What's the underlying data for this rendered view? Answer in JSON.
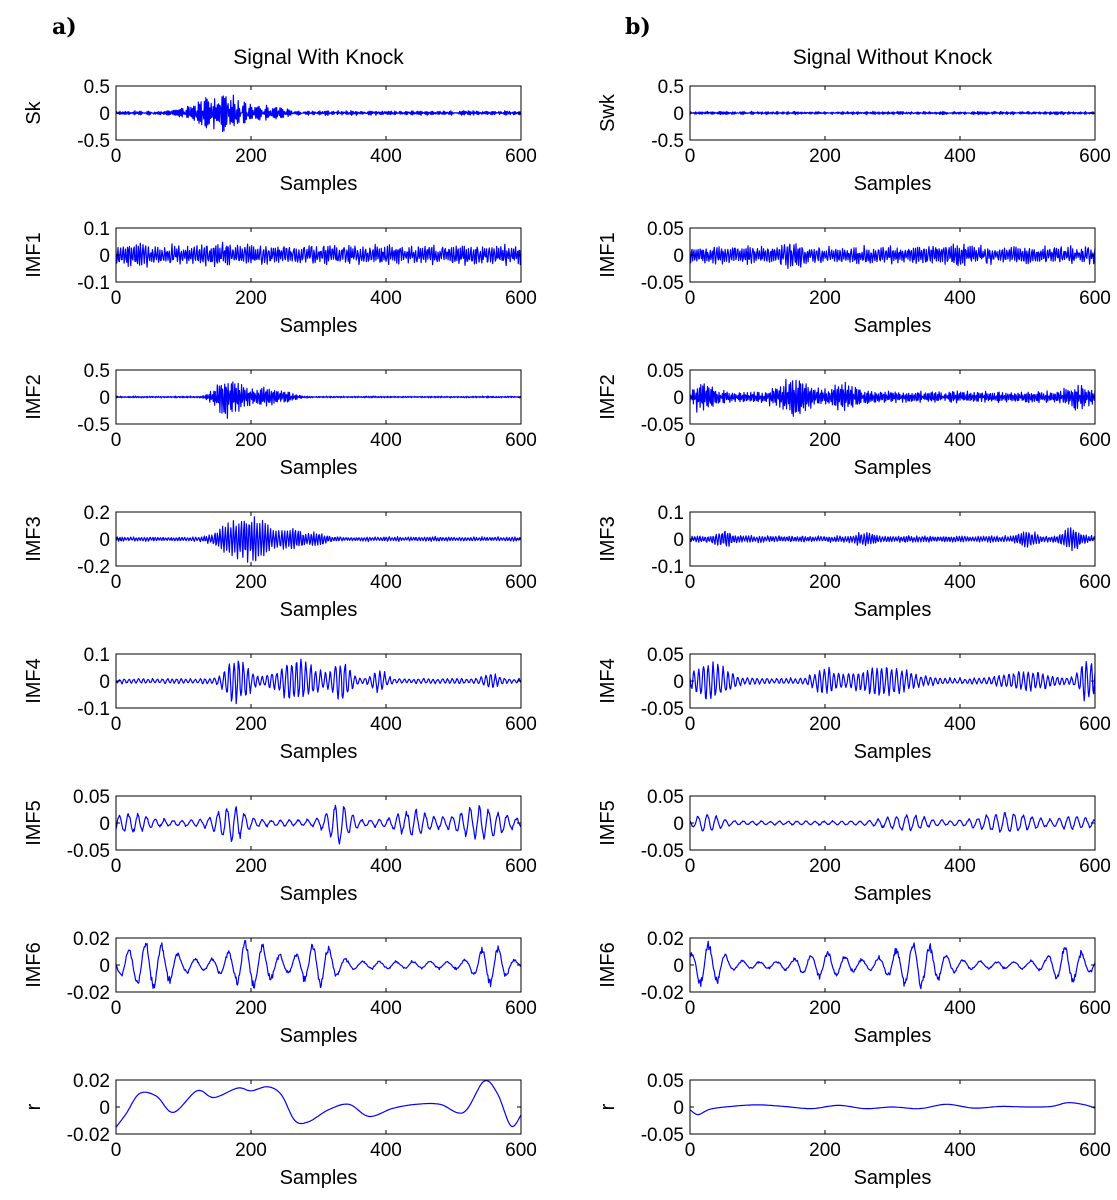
{
  "colors": {
    "signal": "#0000ff",
    "axes": "#000000",
    "background": "#ffffff"
  },
  "chart_data": [
    {
      "type": "line",
      "panel_letter": "a)",
      "title": "Signal With Knock",
      "seed": 11,
      "subplots": [
        {
          "ylabel": "Sk",
          "ylim": [
            -0.5,
            0.5
          ],
          "yticks": [
            "0.5",
            "0",
            "-0.5"
          ],
          "xlim": [
            0,
            600
          ],
          "xticks": [
            "0",
            "200",
            "400",
            "600"
          ],
          "xlabel": "Samples",
          "envelope": {
            "base": 0.05,
            "bursts": [
              [
                155,
                40,
                0.38
              ],
              [
                230,
                25,
                0.1
              ]
            ]
          },
          "freq": 0.9
        },
        {
          "ylabel": "IMF1",
          "ylim": [
            -0.1,
            0.1
          ],
          "yticks": [
            "0.1",
            "0",
            "-0.1"
          ],
          "xlim": [
            0,
            600
          ],
          "xticks": [
            "0",
            "200",
            "400",
            "600"
          ],
          "xlabel": "Samples",
          "envelope": {
            "base": 0.045,
            "bursts": [
              [
                30,
                15,
                0.02
              ],
              [
                160,
                20,
                0.01
              ]
            ]
          },
          "freq": 1.4
        },
        {
          "ylabel": "IMF2",
          "ylim": [
            -0.5,
            0.5
          ],
          "yticks": [
            "0.5",
            "0",
            "-0.5"
          ],
          "xlim": [
            0,
            600
          ],
          "xticks": [
            "0",
            "200",
            "400",
            "600"
          ],
          "xlabel": "Samples",
          "envelope": {
            "base": 0.02,
            "bursts": [
              [
                160,
                18,
                0.33
              ],
              [
                185,
                20,
                0.25
              ],
              [
                225,
                18,
                0.18
              ],
              [
                255,
                15,
                0.08
              ]
            ]
          },
          "freq": 0.8
        },
        {
          "ylabel": "IMF3",
          "ylim": [
            -0.2,
            0.2
          ],
          "yticks": [
            "0.2",
            "0",
            "-0.2"
          ],
          "xlim": [
            0,
            600
          ],
          "xticks": [
            "0",
            "200",
            "400",
            "600"
          ],
          "xlabel": "Samples",
          "envelope": {
            "base": 0.02,
            "bursts": [
              [
                170,
                25,
                0.1
              ],
              [
                205,
                25,
                0.15
              ],
              [
                260,
                25,
                0.07
              ],
              [
                300,
                15,
                0.04
              ]
            ]
          },
          "freq": 0.5
        },
        {
          "ylabel": "IMF4",
          "ylim": [
            -0.1,
            0.1
          ],
          "yticks": [
            "0.1",
            "0",
            "-0.1"
          ],
          "xlim": [
            0,
            600
          ],
          "xticks": [
            "0",
            "200",
            "400",
            "600"
          ],
          "xlabel": "Samples",
          "envelope": {
            "base": 0.012,
            "bursts": [
              [
                180,
                20,
                0.085
              ],
              [
                270,
                35,
                0.075
              ],
              [
                335,
                15,
                0.07
              ],
              [
                390,
                12,
                0.04
              ],
              [
                555,
                15,
                0.02
              ]
            ]
          },
          "freq": 0.28
        },
        {
          "ylabel": "IMF5",
          "ylim": [
            -0.05,
            0.05
          ],
          "yticks": [
            "0.05",
            "0",
            "-0.05"
          ],
          "xlim": [
            0,
            600
          ],
          "xticks": [
            "0",
            "200",
            "400",
            "600"
          ],
          "xlabel": "Samples",
          "envelope": {
            "base": 0.008,
            "bursts": [
              [
                20,
                30,
                0.014
              ],
              [
                170,
                25,
                0.03
              ],
              [
                330,
                20,
                0.035
              ],
              [
                440,
                30,
                0.02
              ],
              [
                540,
                40,
                0.028
              ]
            ]
          },
          "freq": 0.15
        },
        {
          "ylabel": "IMF6",
          "ylim": [
            -0.02,
            0.02
          ],
          "yticks": [
            "0.02",
            "0",
            "-0.02"
          ],
          "xlim": [
            0,
            600
          ],
          "xticks": [
            "0",
            "200",
            "400",
            "600"
          ],
          "xlabel": "Samples",
          "envelope": {
            "base": 0.004,
            "bursts": [
              [
                50,
                45,
                0.016
              ],
              [
                200,
                40,
                0.016
              ],
              [
                300,
                30,
                0.015
              ],
              [
                555,
                25,
                0.013
              ]
            ]
          },
          "freq": 0.08
        },
        {
          "ylabel": "r",
          "ylim": [
            -0.02,
            0.02
          ],
          "yticks": [
            "0.02",
            "0",
            "-0.02"
          ],
          "xlim": [
            0,
            600
          ],
          "xticks": [
            "0",
            "200",
            "400",
            "600"
          ],
          "xlabel": "Samples",
          "smooth": [
            [
              0,
              -0.015
            ],
            [
              15,
              -0.005
            ],
            [
              35,
              0.01
            ],
            [
              60,
              0.008
            ],
            [
              85,
              -0.004
            ],
            [
              120,
              0.012
            ],
            [
              145,
              0.007
            ],
            [
              180,
              0.014
            ],
            [
              200,
              0.012
            ],
            [
              225,
              0.015
            ],
            [
              245,
              0.009
            ],
            [
              265,
              -0.01
            ],
            [
              285,
              -0.011
            ],
            [
              315,
              -0.002
            ],
            [
              345,
              0.002
            ],
            [
              375,
              -0.007
            ],
            [
              410,
              -0.001
            ],
            [
              445,
              0.002
            ],
            [
              480,
              0.002
            ],
            [
              515,
              -0.004
            ],
            [
              545,
              0.019
            ],
            [
              565,
              0.01
            ],
            [
              585,
              -0.014
            ],
            [
              600,
              -0.006
            ]
          ]
        }
      ]
    },
    {
      "type": "line",
      "panel_letter": "b)",
      "title": "Signal Without Knock",
      "seed": 29,
      "subplots": [
        {
          "ylabel": "Swk",
          "ylim": [
            -0.5,
            0.5
          ],
          "yticks": [
            "0.5",
            "0",
            "-0.5"
          ],
          "xlim": [
            0,
            600
          ],
          "xticks": [
            "0",
            "200",
            "400",
            "600"
          ],
          "xlabel": "Samples",
          "envelope": {
            "base": 0.035,
            "bursts": []
          },
          "freq": 0.9
        },
        {
          "ylabel": "IMF1",
          "ylim": [
            -0.05,
            0.05
          ],
          "yticks": [
            "0.05",
            "0",
            "-0.05"
          ],
          "xlim": [
            0,
            600
          ],
          "xticks": [
            "0",
            "200",
            "400",
            "600"
          ],
          "xlabel": "Samples",
          "envelope": {
            "base": 0.02,
            "bursts": [
              [
                150,
                15,
                0.012
              ],
              [
                400,
                20,
                0.008
              ]
            ]
          },
          "freq": 1.4
        },
        {
          "ylabel": "IMF2",
          "ylim": [
            -0.05,
            0.05
          ],
          "yticks": [
            "0.05",
            "0",
            "-0.05"
          ],
          "xlim": [
            0,
            600
          ],
          "xticks": [
            "0",
            "200",
            "400",
            "600"
          ],
          "xlabel": "Samples",
          "envelope": {
            "base": 0.013,
            "bursts": [
              [
                20,
                20,
                0.02
              ],
              [
                155,
                25,
                0.035
              ],
              [
                230,
                25,
                0.018
              ],
              [
                580,
                25,
                0.015
              ]
            ]
          },
          "freq": 0.8
        },
        {
          "ylabel": "IMF3",
          "ylim": [
            -0.1,
            0.1
          ],
          "yticks": [
            "0.1",
            "0",
            "-0.1"
          ],
          "xlim": [
            0,
            600
          ],
          "xticks": [
            "0",
            "200",
            "400",
            "600"
          ],
          "xlabel": "Samples",
          "envelope": {
            "base": 0.015,
            "bursts": [
              [
                50,
                15,
                0.025
              ],
              [
                260,
                15,
                0.02
              ],
              [
                500,
                15,
                0.025
              ],
              [
                565,
                15,
                0.035
              ]
            ]
          },
          "freq": 0.5
        },
        {
          "ylabel": "IMF4",
          "ylim": [
            -0.05,
            0.05
          ],
          "yticks": [
            "0.05",
            "0",
            "-0.05"
          ],
          "xlim": [
            0,
            600
          ],
          "xticks": [
            "0",
            "200",
            "400",
            "600"
          ],
          "xlabel": "Samples",
          "envelope": {
            "base": 0.007,
            "bursts": [
              [
                30,
                30,
                0.035
              ],
              [
                200,
                20,
                0.02
              ],
              [
                285,
                50,
                0.025
              ],
              [
                500,
                40,
                0.015
              ],
              [
                590,
                15,
                0.04
              ]
            ]
          },
          "freq": 0.28
        },
        {
          "ylabel": "IMF5",
          "ylim": [
            -0.05,
            0.05
          ],
          "yticks": [
            "0.05",
            "0",
            "-0.05"
          ],
          "xlim": [
            0,
            600
          ],
          "xticks": [
            "0",
            "200",
            "400",
            "600"
          ],
          "xlabel": "Samples",
          "envelope": {
            "base": 0.005,
            "bursts": [
              [
                25,
                25,
                0.013
              ],
              [
                320,
                35,
                0.014
              ],
              [
                470,
                50,
                0.016
              ],
              [
                570,
                25,
                0.01
              ]
            ]
          },
          "freq": 0.15
        },
        {
          "ylabel": "IMF6",
          "ylim": [
            -0.02,
            0.02
          ],
          "yticks": [
            "0.02",
            "0",
            "-0.02"
          ],
          "xlim": [
            0,
            600
          ],
          "xticks": [
            "0",
            "200",
            "400",
            "600"
          ],
          "xlabel": "Samples",
          "envelope": {
            "base": 0.004,
            "bursts": [
              [
                25,
                25,
                0.016
              ],
              [
                200,
                40,
                0.008
              ],
              [
                335,
                45,
                0.016
              ],
              [
                560,
                30,
                0.012
              ]
            ]
          },
          "freq": 0.08
        },
        {
          "ylabel": "r",
          "ylim": [
            -0.05,
            0.05
          ],
          "yticks": [
            "0.05",
            "0",
            "-0.05"
          ],
          "xlim": [
            0,
            600
          ],
          "xticks": [
            "0",
            "200",
            "400",
            "600"
          ],
          "xlabel": "Samples",
          "smooth": [
            [
              0,
              -0.005
            ],
            [
              12,
              -0.014
            ],
            [
              30,
              -0.004
            ],
            [
              60,
              0.001
            ],
            [
              100,
              0.004
            ],
            [
              140,
              0.001
            ],
            [
              180,
              -0.003
            ],
            [
              220,
              0.003
            ],
            [
              260,
              -0.003
            ],
            [
              300,
              0.0
            ],
            [
              340,
              -0.003
            ],
            [
              380,
              0.005
            ],
            [
              420,
              -0.002
            ],
            [
              460,
              0.001
            ],
            [
              500,
              0.0
            ],
            [
              535,
              0.001
            ],
            [
              560,
              0.008
            ],
            [
              585,
              0.004
            ],
            [
              600,
              -0.002
            ]
          ]
        }
      ]
    }
  ]
}
